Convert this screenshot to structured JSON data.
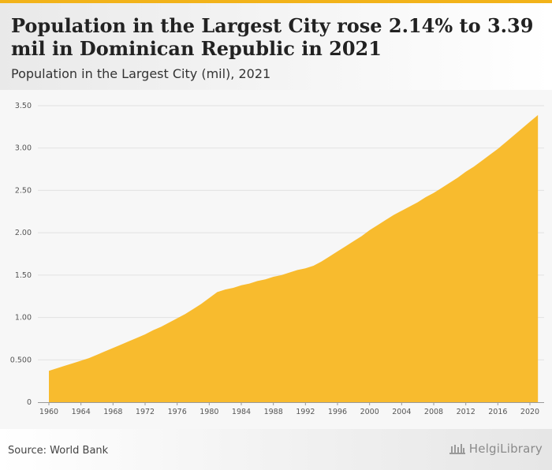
{
  "header": {
    "title": "Population in the Largest City rose 2.14% to 3.39 mil in Dominican Republic in 2021",
    "subtitle": "Population in the Largest City (mil), 2021"
  },
  "footer": {
    "source": "Source: World Bank",
    "logo_text": "HelgiLibrary"
  },
  "colors": {
    "accent": "#f2b31a",
    "area_fill": "#f8bb2e"
  },
  "chart_data": {
    "type": "area",
    "title": "Population in the Largest City (mil), 2021",
    "xlabel": "",
    "ylabel": "",
    "ylim": [
      0,
      3.5
    ],
    "xlim": [
      1960,
      2021
    ],
    "grid": true,
    "y_ticks": [
      0,
      0.5,
      1.0,
      1.5,
      2.0,
      2.5,
      3.0,
      3.5
    ],
    "y_tick_labels": [
      "0",
      "0.500",
      "1.00",
      "1.50",
      "2.00",
      "2.50",
      "3.00",
      "3.50"
    ],
    "x_ticks": [
      1960,
      1964,
      1968,
      1972,
      1976,
      1980,
      1984,
      1988,
      1992,
      1996,
      2000,
      2004,
      2008,
      2012,
      2016,
      2020
    ],
    "x_tick_labels": [
      "1960",
      "1964",
      "1968",
      "1972",
      "1976",
      "1980",
      "1984",
      "1988",
      "1992",
      "1996",
      "2000",
      "2004",
      "2008",
      "2012",
      "2016",
      "2020"
    ],
    "series": [
      {
        "x": [
          1960,
          1961,
          1962,
          1963,
          1964,
          1965,
          1966,
          1967,
          1968,
          1969,
          1970,
          1971,
          1972,
          1973,
          1974,
          1975,
          1976,
          1977,
          1978,
          1979,
          1980,
          1981,
          1982,
          1983,
          1984,
          1985,
          1986,
          1987,
          1988,
          1989,
          1990,
          1991,
          1992,
          1993,
          1994,
          1995,
          1996,
          1997,
          1998,
          1999,
          2000,
          2001,
          2002,
          2003,
          2004,
          2005,
          2006,
          2007,
          2008,
          2009,
          2010,
          2011,
          2012,
          2013,
          2014,
          2015,
          2016,
          2017,
          2018,
          2019,
          2020,
          2021
        ],
        "values": [
          0.37,
          0.4,
          0.43,
          0.46,
          0.49,
          0.52,
          0.56,
          0.6,
          0.64,
          0.68,
          0.72,
          0.76,
          0.8,
          0.85,
          0.89,
          0.94,
          0.99,
          1.04,
          1.1,
          1.16,
          1.23,
          1.3,
          1.33,
          1.35,
          1.38,
          1.4,
          1.43,
          1.45,
          1.48,
          1.5,
          1.53,
          1.56,
          1.58,
          1.61,
          1.66,
          1.72,
          1.78,
          1.84,
          1.9,
          1.96,
          2.03,
          2.09,
          2.15,
          2.21,
          2.26,
          2.31,
          2.36,
          2.42,
          2.47,
          2.53,
          2.59,
          2.65,
          2.72,
          2.78,
          2.85,
          2.92,
          2.99,
          3.07,
          3.15,
          3.23,
          3.31,
          3.39
        ]
      }
    ]
  }
}
